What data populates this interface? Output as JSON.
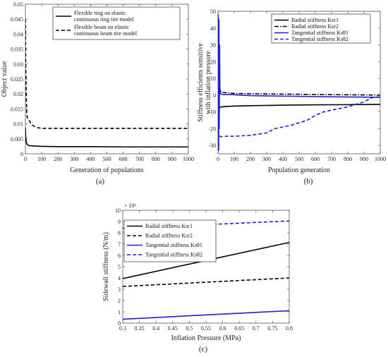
{
  "chart_data": [
    {
      "type": "line",
      "panel_label": "(a)",
      "xlabel": "Generation of populations",
      "ylabel": "Object value",
      "xlim": [
        0,
        1000
      ],
      "ylim": [
        0,
        0.05
      ],
      "xticks": [
        0,
        100,
        200,
        300,
        400,
        500,
        600,
        700,
        800,
        900,
        1000
      ],
      "xtick_labels": [
        "0",
        "100",
        "200",
        "300",
        "400",
        "500",
        "600",
        "700",
        "800",
        "900",
        "1000"
      ],
      "yticks": [
        0,
        0.005,
        0.01,
        0.015,
        0.02,
        0.025,
        0.03,
        0.035,
        0.04,
        0.045,
        0.05
      ],
      "ytick_labels": [
        "0",
        "0.005",
        "0.01",
        "0.015",
        "0.02",
        "0.025",
        "0.03",
        "0.035",
        "0.04",
        "0.045",
        "0.05"
      ],
      "legend_position": "top-right",
      "series": [
        {
          "name": "Flexible ring on elastic continuous ring tire model",
          "name_lines": [
            "Flexible ring on elastic",
            "continuous ring tire model"
          ],
          "color": "#000000",
          "style": "solid",
          "x": [
            0,
            2,
            5,
            10,
            15,
            20,
            30,
            50,
            100,
            200,
            400,
            600,
            800,
            1000
          ],
          "y": [
            0.0088,
            0.0055,
            0.004,
            0.0032,
            0.0029,
            0.0028,
            0.0027,
            0.0026,
            0.0025,
            0.0024,
            0.0024,
            0.0023,
            0.0023,
            0.0023
          ]
        },
        {
          "name": "Flexible beam on elastic continuous beam tire model",
          "name_lines": [
            "Flexible beam on elastic",
            "continuous beam tire model"
          ],
          "color": "#000000",
          "style": "dashed",
          "x": [
            0,
            2,
            5,
            8,
            12,
            18,
            25,
            35,
            50,
            70,
            100,
            200,
            400,
            600,
            800,
            1000
          ],
          "y": [
            0.045,
            0.03,
            0.02,
            0.014,
            0.012,
            0.0115,
            0.011,
            0.01,
            0.0093,
            0.0088,
            0.0085,
            0.0085,
            0.0085,
            0.0085,
            0.0085,
            0.0085
          ]
        }
      ]
    },
    {
      "type": "line",
      "panel_label": "(b)",
      "xlabel": "Population generation",
      "ylabel": "Stiffness efficients sensitive with inflation pressure",
      "ylabel_lines": [
        "Stiffness efficients sensitive",
        "with inflation pressure"
      ],
      "xlim": [
        0,
        1000
      ],
      "ylim": [
        -35,
        50
      ],
      "xticks": [
        0,
        100,
        200,
        300,
        400,
        500,
        600,
        700,
        800,
        900,
        1000
      ],
      "xtick_labels": [
        "0",
        "100",
        "200",
        "300",
        "400",
        "500",
        "600",
        "700",
        "800",
        "900",
        "1000"
      ],
      "yticks": [
        -30,
        -20,
        -10,
        0,
        10,
        20,
        30,
        40,
        50
      ],
      "ytick_labels": [
        "-30",
        "-20",
        "-10",
        "0",
        "10",
        "20",
        "30",
        "40",
        "50"
      ],
      "legend_position": "top-right",
      "series": [
        {
          "name": "Radial stiffness Ksr1",
          "color": "#000000",
          "style": "solid",
          "x": [
            0,
            3,
            6,
            10,
            20,
            50,
            100,
            200,
            400,
            600,
            800,
            1000
          ],
          "y": [
            -5,
            -20,
            -8,
            -7.5,
            -7,
            -6.8,
            -6.5,
            -6.3,
            -6,
            -5.8,
            -5.7,
            -5.5
          ]
        },
        {
          "name": "Radial stiffness Ksr2",
          "color": "#000000",
          "style": "dashdot",
          "x": [
            0,
            3,
            6,
            10,
            20,
            40,
            100,
            200,
            400,
            600,
            800,
            1000
          ],
          "y": [
            0,
            10,
            4,
            3,
            2,
            1.5,
            1,
            0.8,
            0.6,
            0.4,
            0.2,
            0
          ]
        },
        {
          "name": "Tangential stiffness Ksθ1",
          "color": "#1f1fd6",
          "style": "solid",
          "x": [
            0,
            2,
            4,
            6,
            8,
            10,
            12,
            15,
            20,
            50,
            100,
            200,
            400,
            600,
            800,
            1000
          ],
          "y": [
            -30,
            48,
            -33,
            45,
            -20,
            30,
            5,
            1,
            0.5,
            0.3,
            0.2,
            -0.3,
            -0.6,
            -0.9,
            -1.1,
            -1.3
          ]
        },
        {
          "name": "Tangential stiffness Ksθ2",
          "color": "#1f1fd6",
          "style": "dashed",
          "x": [
            0,
            5,
            10,
            20,
            50,
            100,
            200,
            300,
            350,
            400,
            450,
            500,
            550,
            600,
            650,
            700,
            800,
            900,
            950,
            1000
          ],
          "y": [
            -25,
            -23,
            -24.5,
            -24.8,
            -24.5,
            -24.5,
            -24,
            -22.5,
            -20,
            -19,
            -18,
            -16.5,
            -15,
            -12,
            -10,
            -9,
            -7,
            -4,
            -1.5,
            -1
          ]
        }
      ]
    },
    {
      "type": "line",
      "panel_label": "(c)",
      "xlabel": "Inflation Pressure (MPa)",
      "ylabel": "Sidewall stiffness (N/m)",
      "exponent_label": "× 10⁶",
      "xlim": [
        0.3,
        0.8
      ],
      "ylim": [
        0,
        10
      ],
      "xticks": [
        0.3,
        0.35,
        0.4,
        0.45,
        0.5,
        0.55,
        0.6,
        0.65,
        0.7,
        0.75,
        0.8
      ],
      "xtick_labels": [
        "0.3",
        "0.35",
        "0.4",
        "0.45",
        "0.5",
        "0.55",
        "0.6",
        "0.65",
        "0.7",
        "0.75",
        "0.8"
      ],
      "yticks": [
        0,
        1,
        2,
        3,
        4,
        5,
        6,
        7,
        8,
        9,
        10
      ],
      "ytick_labels": [
        "0",
        "1",
        "2",
        "3",
        "4",
        "5",
        "6",
        "7",
        "8",
        "9",
        "10"
      ],
      "legend_position": "upper-left",
      "series": [
        {
          "name": "Radial stiffness Ksr1",
          "color": "#000000",
          "style": "solid",
          "x": [
            0.3,
            0.8
          ],
          "y": [
            3.95,
            7.15
          ]
        },
        {
          "name": "Radial stiffness Ksr2",
          "color": "#000000",
          "style": "dashed",
          "x": [
            0.3,
            0.8
          ],
          "y": [
            3.25,
            4.0
          ]
        },
        {
          "name": "Tangential stiffness Ksθ1",
          "color": "#1f1fd6",
          "style": "solid",
          "x": [
            0.3,
            0.8
          ],
          "y": [
            0.35,
            1.1
          ]
        },
        {
          "name": "Tangential stiffness Ksθ2",
          "color": "#1f1fd6",
          "style": "dashed",
          "x": [
            0.3,
            0.8
          ],
          "y": [
            8.4,
            9.05
          ]
        }
      ]
    }
  ]
}
